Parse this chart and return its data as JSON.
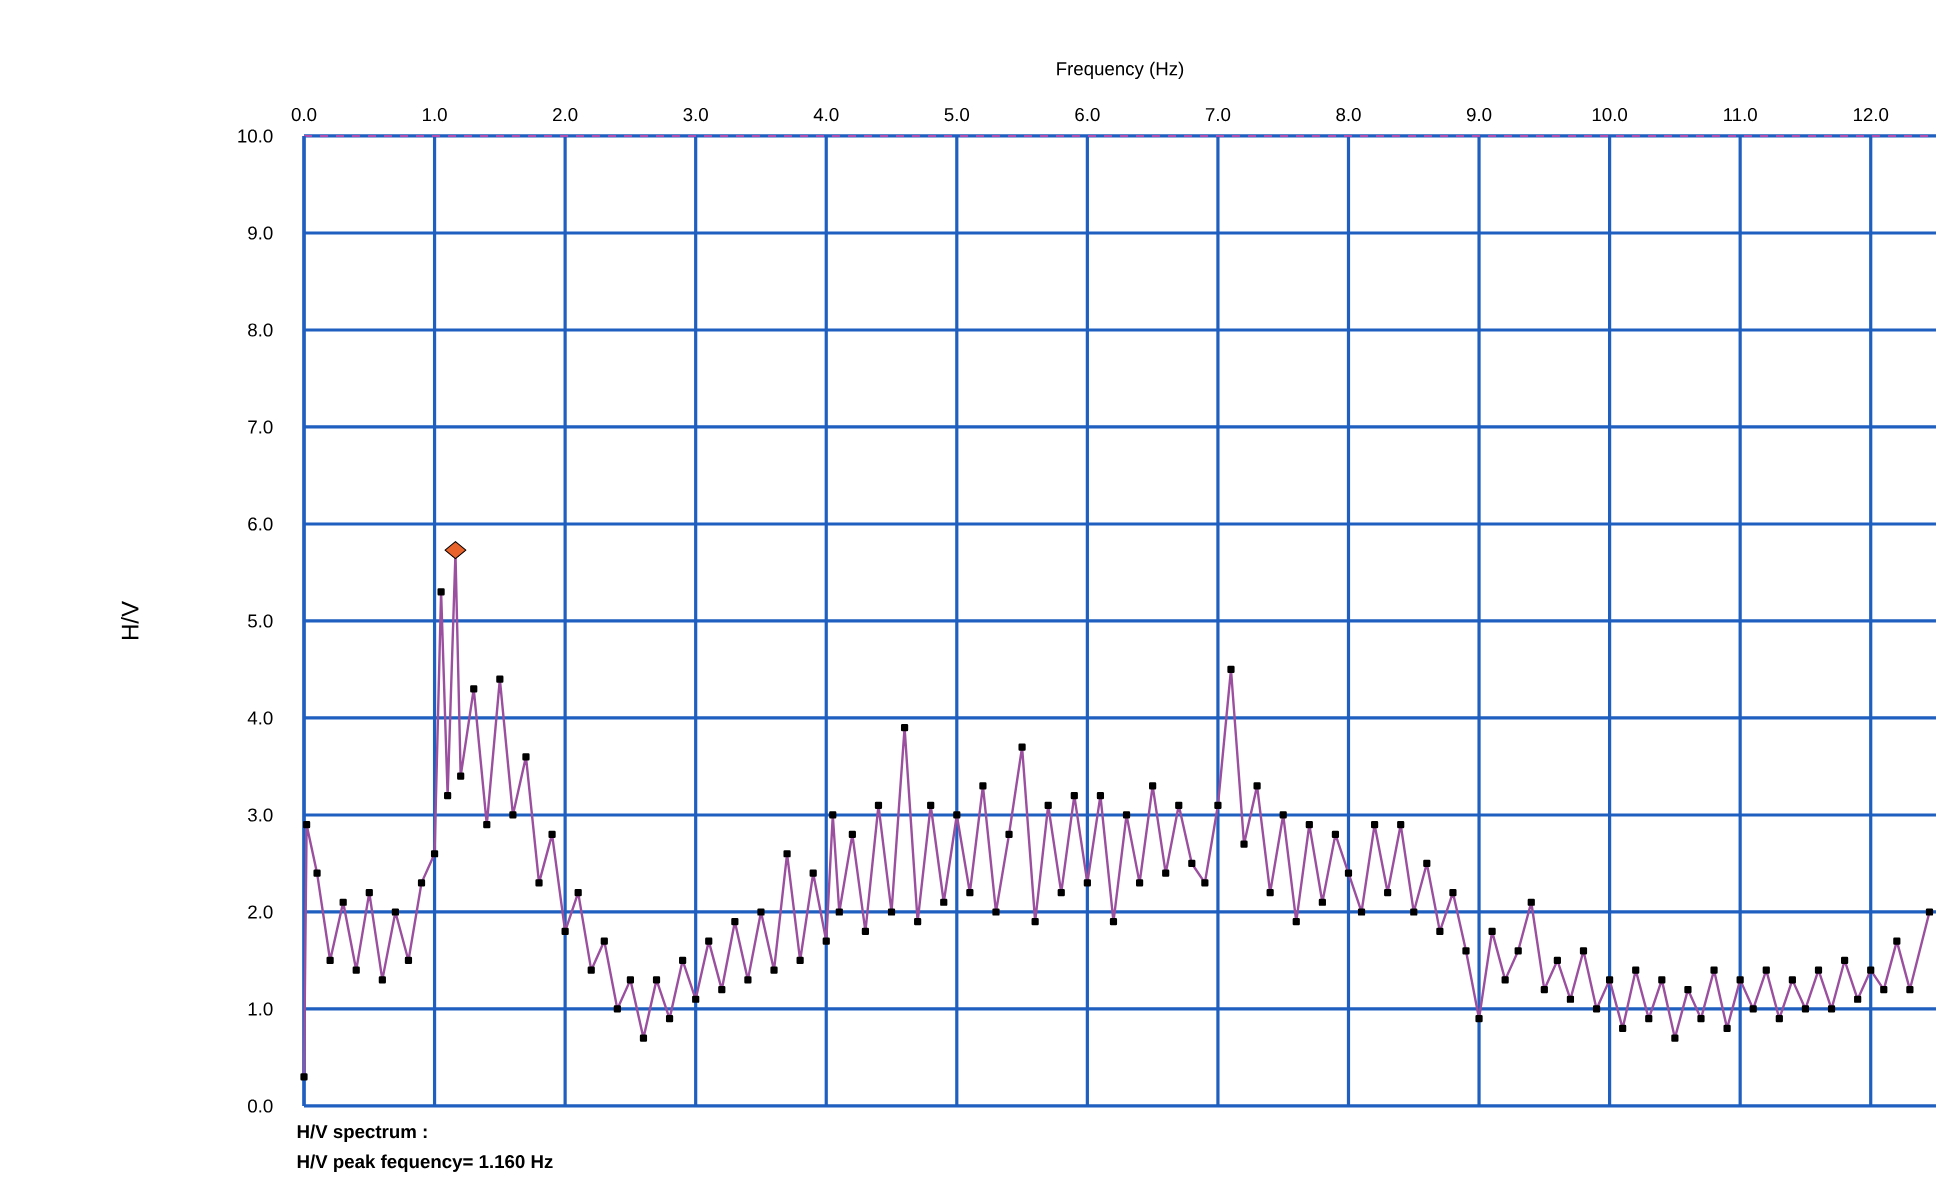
{
  "chart_data": {
    "type": "line",
    "xlabel": "Frequency (Hz)",
    "ylabel": "H/V",
    "xlim": [
      0,
      12.5
    ],
    "ylim": [
      0,
      10
    ],
    "xticks": [
      {
        "value": 0,
        "label": "0.0"
      },
      {
        "value": 1,
        "label": "1.0"
      },
      {
        "value": 2,
        "label": "2.0"
      },
      {
        "value": 3,
        "label": "3.0"
      },
      {
        "value": 4,
        "label": "4.0"
      },
      {
        "value": 5,
        "label": "5.0"
      },
      {
        "value": 6,
        "label": "6.0"
      },
      {
        "value": 7,
        "label": "7.0"
      },
      {
        "value": 8,
        "label": "8.0"
      },
      {
        "value": 9,
        "label": "9.0"
      },
      {
        "value": 10,
        "label": "10.0"
      },
      {
        "value": 11,
        "label": "11.0"
      },
      {
        "value": 12,
        "label": "12.0"
      }
    ],
    "yticks": [
      {
        "value": 0,
        "label": "0.0"
      },
      {
        "value": 1,
        "label": "1.0"
      },
      {
        "value": 2,
        "label": "2.0"
      },
      {
        "value": 3,
        "label": "3.0"
      },
      {
        "value": 4,
        "label": "4.0"
      },
      {
        "value": 5,
        "label": "5.0"
      },
      {
        "value": 6,
        "label": "6.0"
      },
      {
        "value": 7,
        "label": "7.0"
      },
      {
        "value": 8,
        "label": "8.0"
      },
      {
        "value": 9,
        "label": "9.0"
      },
      {
        "value": 10,
        "label": "10.0"
      }
    ],
    "grid": true,
    "series": [
      {
        "color": "#9b4f9f",
        "marker": "square",
        "x": [
          0.0,
          0.02,
          0.1,
          0.2,
          0.3,
          0.4,
          0.5,
          0.6,
          0.7,
          0.8,
          0.9,
          1.0,
          1.05,
          1.1,
          1.16,
          1.2,
          1.3,
          1.4,
          1.5,
          1.6,
          1.7,
          1.8,
          1.9,
          2.0,
          2.1,
          2.2,
          2.3,
          2.4,
          2.5,
          2.6,
          2.7,
          2.8,
          2.9,
          3.0,
          3.1,
          3.2,
          3.3,
          3.4,
          3.5,
          3.6,
          3.7,
          3.8,
          3.9,
          4.0,
          4.05,
          4.1,
          4.2,
          4.3,
          4.4,
          4.5,
          4.6,
          4.7,
          4.8,
          4.9,
          5.0,
          5.1,
          5.2,
          5.3,
          5.4,
          5.5,
          5.6,
          5.7,
          5.8,
          5.9,
          6.0,
          6.1,
          6.2,
          6.3,
          6.4,
          6.5,
          6.6,
          6.7,
          6.8,
          6.9,
          7.0,
          7.1,
          7.2,
          7.3,
          7.4,
          7.5,
          7.6,
          7.7,
          7.8,
          7.9,
          8.0,
          8.1,
          8.2,
          8.3,
          8.4,
          8.5,
          8.6,
          8.7,
          8.8,
          8.9,
          9.0,
          9.1,
          9.2,
          9.3,
          9.4,
          9.5,
          9.6,
          9.7,
          9.8,
          9.9,
          10.0,
          10.1,
          10.2,
          10.3,
          10.4,
          10.5,
          10.6,
          10.7,
          10.8,
          10.9,
          11.0,
          11.1,
          11.2,
          11.3,
          11.4,
          11.5,
          11.6,
          11.7,
          11.8,
          11.9,
          12.0,
          12.1,
          12.2,
          12.3,
          12.45
        ],
        "values": [
          0.3,
          2.9,
          2.4,
          1.5,
          2.1,
          1.4,
          2.2,
          1.3,
          2.0,
          1.5,
          2.3,
          2.6,
          5.3,
          3.2,
          5.7,
          3.4,
          4.3,
          2.9,
          4.4,
          3.0,
          3.6,
          2.3,
          2.8,
          1.8,
          2.2,
          1.4,
          1.7,
          1.0,
          1.3,
          0.7,
          1.3,
          0.9,
          1.5,
          1.1,
          1.7,
          1.2,
          1.9,
          1.3,
          2.0,
          1.4,
          2.6,
          1.5,
          2.4,
          1.7,
          3.0,
          2.0,
          2.8,
          1.8,
          3.1,
          2.0,
          3.9,
          1.9,
          3.1,
          2.1,
          3.0,
          2.2,
          3.3,
          2.0,
          2.8,
          3.7,
          1.9,
          3.1,
          2.2,
          3.2,
          2.3,
          3.2,
          1.9,
          3.0,
          2.3,
          3.3,
          2.4,
          3.1,
          2.5,
          2.3,
          3.1,
          4.5,
          2.7,
          3.3,
          2.2,
          3.0,
          1.9,
          2.9,
          2.1,
          2.8,
          2.4,
          2.0,
          2.9,
          2.2,
          2.9,
          2.0,
          2.5,
          1.8,
          2.2,
          1.6,
          0.9,
          1.8,
          1.3,
          1.6,
          2.1,
          1.2,
          1.5,
          1.1,
          1.6,
          1.0,
          1.3,
          0.8,
          1.4,
          0.9,
          1.3,
          0.7,
          1.2,
          0.9,
          1.4,
          0.8,
          1.3,
          1.0,
          1.4,
          0.9,
          1.3,
          1.0,
          1.4,
          1.0,
          1.5,
          1.1,
          1.4,
          1.2,
          1.7,
          1.2,
          2.0
        ]
      },
      {
        "type": "scatter",
        "color": "#e8622c",
        "marker": "diamond",
        "x": [
          1.16
        ],
        "values": [
          5.73
        ]
      }
    ],
    "annotations": [
      "H/V spectrum :",
      "H/V peak fequency= 1.160 Hz"
    ]
  }
}
